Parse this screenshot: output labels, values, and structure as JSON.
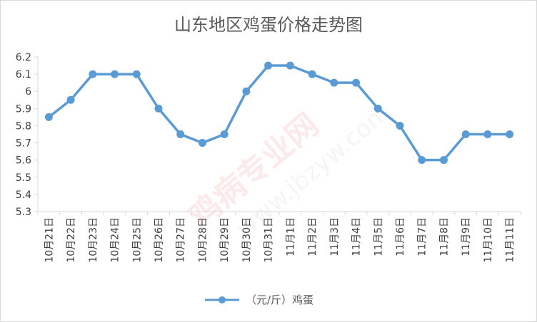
{
  "chart_data": {
    "type": "line",
    "title": "山东地区鸡蛋价格走势图",
    "xlabel": "",
    "ylabel": "",
    "ylim": [
      5.3,
      6.2
    ],
    "yticks": [
      "6.2",
      "6.1",
      "6",
      "5.9",
      "5.8",
      "5.7",
      "5.6",
      "5.5",
      "5.4",
      "5.3"
    ],
    "categories": [
      "10月21日",
      "10月22日",
      "10月23日",
      "10月24日",
      "10月25日",
      "10月26日",
      "10月27日",
      "10月28日",
      "10月29日",
      "10月30日",
      "10月31日",
      "11月1日",
      "11月2日",
      "11月3日",
      "11月4日",
      "11月5日",
      "11月6日",
      "11月7日",
      "11月8日",
      "11月9日",
      "11月10日",
      "11月11日"
    ],
    "series": [
      {
        "name": "（元/斤）鸡蛋",
        "values": [
          5.85,
          5.95,
          6.1,
          6.1,
          6.1,
          5.9,
          5.75,
          5.7,
          5.75,
          6.0,
          6.15,
          6.15,
          6.1,
          6.05,
          6.05,
          5.9,
          5.8,
          5.6,
          5.6,
          5.75,
          5.75,
          5.75
        ]
      }
    ],
    "series_color": "#5b9bd5",
    "grid": false,
    "legend_position": "bottom",
    "watermark": "鸡病专业网 www.jbzyw.com"
  }
}
